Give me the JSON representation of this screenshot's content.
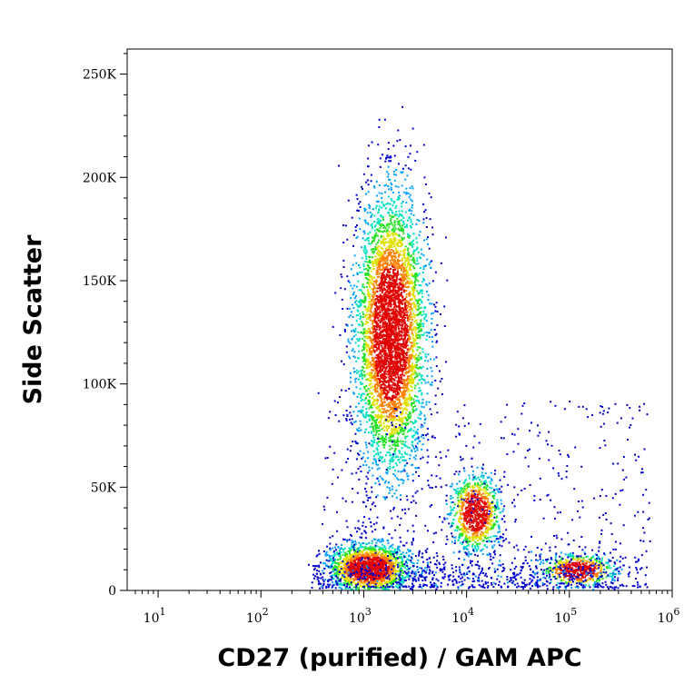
{
  "chart_data": {
    "type": "scatter",
    "title": "",
    "xlabel": "CD27 (purified) / GAM APC",
    "ylabel": "Side Scatter",
    "x_scale": "log",
    "y_scale": "linear",
    "xlim": [
      5,
      1000000
    ],
    "ylim": [
      0,
      262144
    ],
    "x_ticks": [
      {
        "value": 10,
        "base": "10",
        "exp": "1"
      },
      {
        "value": 100,
        "base": "10",
        "exp": "2"
      },
      {
        "value": 1000,
        "base": "10",
        "exp": "3"
      },
      {
        "value": 10000,
        "base": "10",
        "exp": "4"
      },
      {
        "value": 100000,
        "base": "10",
        "exp": "5"
      },
      {
        "value": 1000000,
        "base": "10",
        "exp": "6"
      }
    ],
    "y_ticks": [
      {
        "value": 0,
        "label": "0"
      },
      {
        "value": 50000,
        "label": "50K"
      },
      {
        "value": 100000,
        "label": "100K"
      },
      {
        "value": 150000,
        "label": "150K"
      },
      {
        "value": 200000,
        "label": "200K"
      },
      {
        "value": 250000,
        "label": "250K"
      }
    ],
    "grid": false,
    "legend": "none",
    "density_colormap": [
      "#0000cc",
      "#00a0ff",
      "#00e0c0",
      "#20e020",
      "#e0e000",
      "#ff8000",
      "#e00000"
    ],
    "populations": [
      {
        "x_center": 1800,
        "y_center": 125000,
        "x_spread_decades": 0.17,
        "y_spread": 33000,
        "share": 0.52
      },
      {
        "x_center": 1100,
        "y_center": 11000,
        "x_spread_decades": 0.2,
        "y_spread": 6000,
        "share": 0.2
      },
      {
        "x_center": 12000,
        "y_center": 38000,
        "x_spread_decades": 0.12,
        "y_spread": 9000,
        "share": 0.1
      },
      {
        "x_center": 120000,
        "y_center": 10000,
        "x_spread_decades": 0.18,
        "y_spread": 4000,
        "share": 0.06
      }
    ]
  }
}
